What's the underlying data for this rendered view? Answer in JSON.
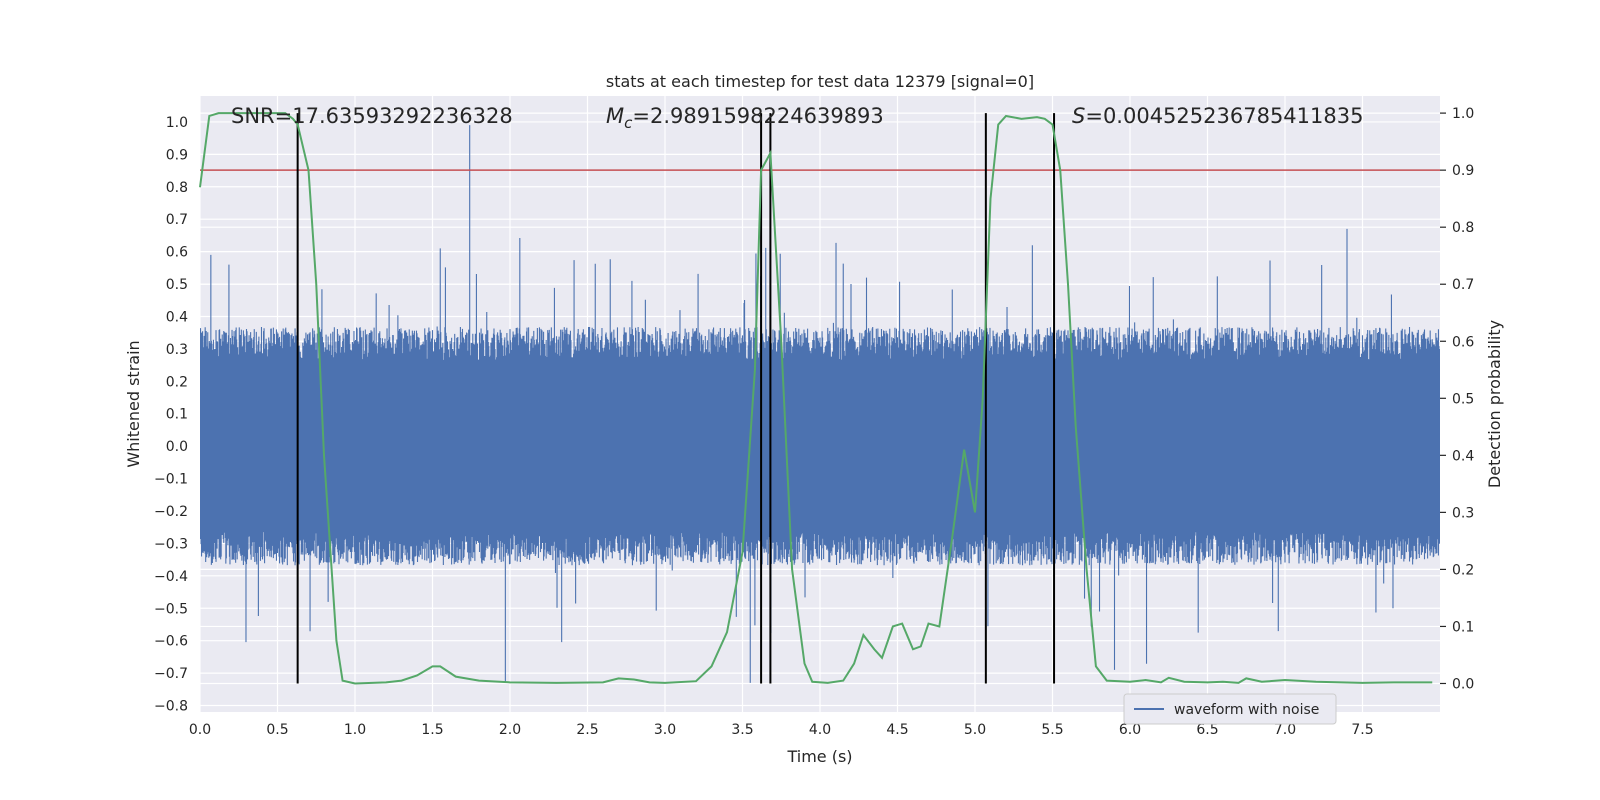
{
  "chart_data": {
    "type": "line",
    "title": "stats at each timestep for test data 12379 [signal=0]",
    "xlabel": "Time (s)",
    "ylabel": "Whitened strain",
    "ylabel_right": "Detection probability",
    "xlim": [
      0.0,
      8.0
    ],
    "ylim": [
      -0.82,
      1.08
    ],
    "ylim_right": [
      -0.05,
      1.03
    ],
    "x_ticks": [
      "0.0",
      "0.5",
      "1.0",
      "1.5",
      "2.0",
      "2.5",
      "3.0",
      "3.5",
      "4.0",
      "4.5",
      "5.0",
      "5.5",
      "6.0",
      "6.5",
      "7.0",
      "7.5"
    ],
    "y_ticks": [
      "1.0",
      "0.9",
      "0.8",
      "0.7",
      "0.6",
      "0.5",
      "0.4",
      "0.3",
      "0.2",
      "0.1",
      "0.0",
      "−0.1",
      "−0.2",
      "−0.3",
      "−0.4",
      "−0.5",
      "−0.6",
      "−0.7",
      "−0.8"
    ],
    "y_ticks_right": [
      "1.0",
      "0.9",
      "0.8",
      "0.7",
      "0.6",
      "0.5",
      "0.4",
      "0.3",
      "0.2",
      "0.1",
      "0.0"
    ],
    "grid": true,
    "legend_position": "lower-right",
    "colors": {
      "waveform": "#4c72b0",
      "probability": "#55a868",
      "threshold": "#c44e52",
      "markers": "#000000",
      "background": "#eaeaf2",
      "grid": "#ffffff"
    },
    "annotations": {
      "snr": "SNR=17.63593292236328",
      "mc_label": "M",
      "mc_sub": "c",
      "mc_value": "=2.9891598224639893",
      "s_label": "S",
      "s_value": "=0.004525236785411835"
    },
    "series": [
      {
        "name": "waveform with noise",
        "kind": "noise-waveform",
        "envelope_typical": [
          -0.35,
          0.35
        ],
        "notable_peaks": [
          [
            1.74,
            0.99
          ],
          [
            0.07,
            0.59
          ],
          [
            1.55,
            0.61
          ],
          [
            3.55,
            -0.73
          ],
          [
            1.97,
            -0.73
          ],
          [
            4.2,
            0.5
          ],
          [
            5.9,
            -0.69
          ],
          [
            7.4,
            0.67
          ]
        ]
      },
      {
        "name": "detection probability",
        "axis": "right",
        "points": [
          [
            0.0,
            0.87
          ],
          [
            0.06,
            0.995
          ],
          [
            0.12,
            1.0
          ],
          [
            0.3,
            1.0
          ],
          [
            0.55,
            1.0
          ],
          [
            0.6,
            0.99
          ],
          [
            0.63,
            0.98
          ],
          [
            0.7,
            0.9
          ],
          [
            0.75,
            0.7
          ],
          [
            0.8,
            0.4
          ],
          [
            0.88,
            0.075
          ],
          [
            0.92,
            0.005
          ],
          [
            1.0,
            0.0
          ],
          [
            1.2,
            0.002
          ],
          [
            1.3,
            0.005
          ],
          [
            1.4,
            0.014
          ],
          [
            1.5,
            0.03
          ],
          [
            1.55,
            0.03
          ],
          [
            1.65,
            0.012
          ],
          [
            1.8,
            0.005
          ],
          [
            2.0,
            0.002
          ],
          [
            2.3,
            0.001
          ],
          [
            2.6,
            0.002
          ],
          [
            2.7,
            0.009
          ],
          [
            2.8,
            0.007
          ],
          [
            2.9,
            0.002
          ],
          [
            3.0,
            0.001
          ],
          [
            3.2,
            0.004
          ],
          [
            3.3,
            0.03
          ],
          [
            3.4,
            0.09
          ],
          [
            3.5,
            0.23
          ],
          [
            3.58,
            0.55
          ],
          [
            3.62,
            0.9
          ],
          [
            3.68,
            0.93
          ],
          [
            3.75,
            0.6
          ],
          [
            3.82,
            0.2
          ],
          [
            3.9,
            0.035
          ],
          [
            3.95,
            0.003
          ],
          [
            4.05,
            0.001
          ],
          [
            4.15,
            0.005
          ],
          [
            4.22,
            0.035
          ],
          [
            4.28,
            0.085
          ],
          [
            4.35,
            0.06
          ],
          [
            4.4,
            0.045
          ],
          [
            4.47,
            0.1
          ],
          [
            4.53,
            0.105
          ],
          [
            4.6,
            0.06
          ],
          [
            4.65,
            0.065
          ],
          [
            4.7,
            0.105
          ],
          [
            4.77,
            0.1
          ],
          [
            4.85,
            0.25
          ],
          [
            4.93,
            0.41
          ],
          [
            5.0,
            0.3
          ],
          [
            5.05,
            0.5
          ],
          [
            5.1,
            0.85
          ],
          [
            5.15,
            0.98
          ],
          [
            5.2,
            0.995
          ],
          [
            5.3,
            0.99
          ],
          [
            5.4,
            0.993
          ],
          [
            5.45,
            0.99
          ],
          [
            5.5,
            0.98
          ],
          [
            5.55,
            0.9
          ],
          [
            5.6,
            0.7
          ],
          [
            5.65,
            0.45
          ],
          [
            5.72,
            0.2
          ],
          [
            5.78,
            0.03
          ],
          [
            5.85,
            0.005
          ],
          [
            6.0,
            0.003
          ],
          [
            6.1,
            0.006
          ],
          [
            6.2,
            0.002
          ],
          [
            6.25,
            0.01
          ],
          [
            6.35,
            0.003
          ],
          [
            6.5,
            0.002
          ],
          [
            6.6,
            0.003
          ],
          [
            6.7,
            0.001
          ],
          [
            6.75,
            0.009
          ],
          [
            6.85,
            0.003
          ],
          [
            7.0,
            0.006
          ],
          [
            7.2,
            0.003
          ],
          [
            7.5,
            0.001
          ],
          [
            7.7,
            0.002
          ],
          [
            7.95,
            0.002
          ]
        ]
      }
    ],
    "threshold_right": 0.9,
    "vertical_markers_x": [
      0.63,
      3.62,
      3.68,
      5.07,
      5.51
    ],
    "vertical_markers_right_range": [
      0.0,
      1.0
    ]
  }
}
